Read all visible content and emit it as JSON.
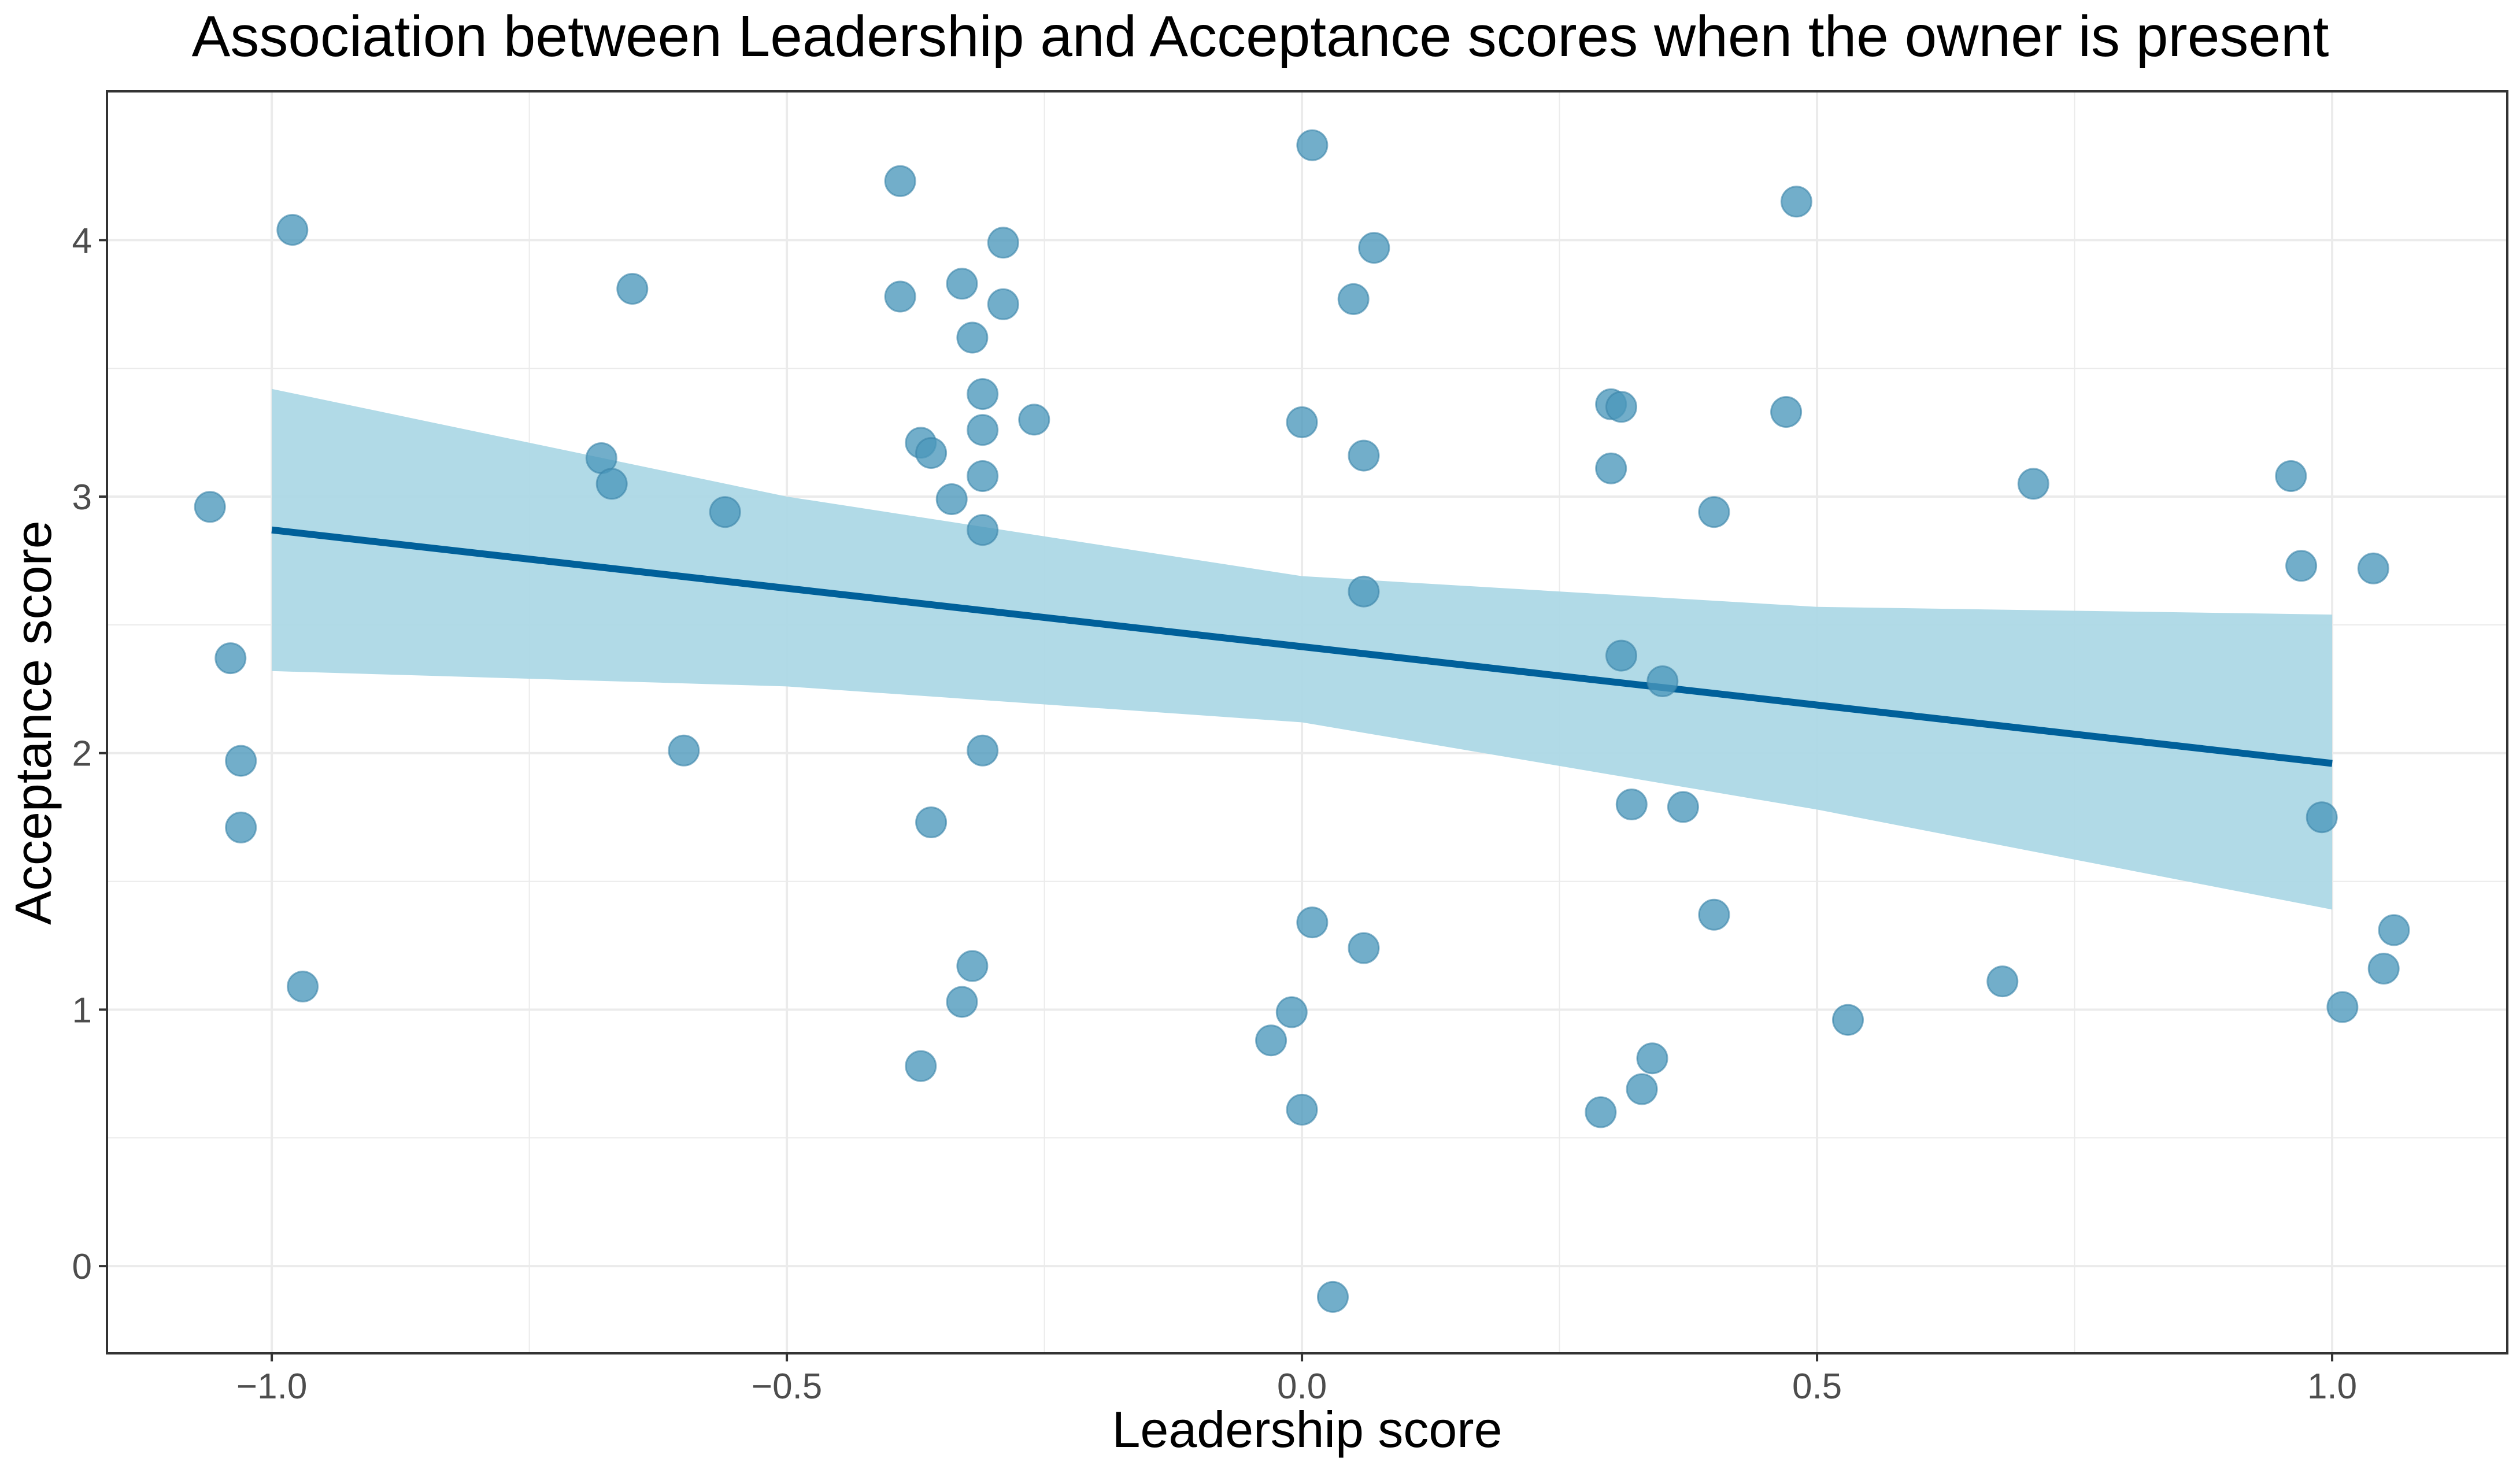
{
  "chart_data": {
    "type": "scatter",
    "title": "Association between Leadership and Acceptance scores when the owner is present",
    "xlabel": "Leadership score",
    "ylabel": "Acceptance score",
    "xlim": [
      -1.16,
      1.17
    ],
    "ylim": [
      -0.34,
      4.58
    ],
    "x_ticks": [
      -1.0,
      -0.5,
      0.0,
      0.5,
      1.0
    ],
    "x_tick_labels": [
      "−1.0",
      "−0.5",
      "0.0",
      "0.5",
      "1.0"
    ],
    "y_ticks": [
      0,
      1,
      2,
      3,
      4
    ],
    "y_tick_labels": [
      "0",
      "1",
      "2",
      "3",
      "4"
    ],
    "grid": true,
    "colors": {
      "points": "#4a97bb",
      "points_stroke": "#3b83a8",
      "line": "#00609a",
      "band": "#add8e6",
      "grid": "#ebebeb",
      "panel_border": "#333333",
      "text": "#000000",
      "tick_text": "#4d4d4d"
    },
    "series": [
      {
        "name": "observations",
        "type": "scatter",
        "points": [
          {
            "x": -0.98,
            "y": 4.04
          },
          {
            "x": -0.65,
            "y": 3.81
          },
          {
            "x": -1.06,
            "y": 2.96
          },
          {
            "x": -1.04,
            "y": 2.37
          },
          {
            "x": -1.03,
            "y": 1.97
          },
          {
            "x": -1.03,
            "y": 1.71
          },
          {
            "x": -0.97,
            "y": 1.09
          },
          {
            "x": -0.68,
            "y": 3.15
          },
          {
            "x": -0.67,
            "y": 3.05
          },
          {
            "x": -0.56,
            "y": 2.94
          },
          {
            "x": -0.6,
            "y": 2.01
          },
          {
            "x": -0.39,
            "y": 4.23
          },
          {
            "x": -0.39,
            "y": 3.78
          },
          {
            "x": -0.33,
            "y": 3.83
          },
          {
            "x": -0.29,
            "y": 3.99
          },
          {
            "x": -0.29,
            "y": 3.75
          },
          {
            "x": -0.32,
            "y": 3.62
          },
          {
            "x": -0.31,
            "y": 3.4
          },
          {
            "x": -0.31,
            "y": 3.26
          },
          {
            "x": -0.26,
            "y": 3.3
          },
          {
            "x": -0.37,
            "y": 3.21
          },
          {
            "x": -0.36,
            "y": 3.17
          },
          {
            "x": -0.31,
            "y": 3.08
          },
          {
            "x": -0.34,
            "y": 2.99
          },
          {
            "x": -0.31,
            "y": 2.87
          },
          {
            "x": -0.31,
            "y": 2.01
          },
          {
            "x": -0.36,
            "y": 1.73
          },
          {
            "x": -0.32,
            "y": 1.17
          },
          {
            "x": -0.33,
            "y": 1.03
          },
          {
            "x": -0.37,
            "y": 0.78
          },
          {
            "x": 0.01,
            "y": 4.37
          },
          {
            "x": 0.07,
            "y": 3.97
          },
          {
            "x": 0.05,
            "y": 3.77
          },
          {
            "x": 0.0,
            "y": 3.29
          },
          {
            "x": 0.06,
            "y": 3.16
          },
          {
            "x": 0.06,
            "y": 2.63
          },
          {
            "x": 0.01,
            "y": 1.34
          },
          {
            "x": 0.06,
            "y": 1.24
          },
          {
            "x": -0.01,
            "y": 0.99
          },
          {
            "x": -0.03,
            "y": 0.88
          },
          {
            "x": 0.0,
            "y": 0.61
          },
          {
            "x": 0.03,
            "y": -0.12
          },
          {
            "x": 0.48,
            "y": 4.15
          },
          {
            "x": 0.3,
            "y": 3.36
          },
          {
            "x": 0.31,
            "y": 3.35
          },
          {
            "x": 0.47,
            "y": 3.33
          },
          {
            "x": 0.3,
            "y": 3.11
          },
          {
            "x": 0.4,
            "y": 2.94
          },
          {
            "x": 0.31,
            "y": 2.38
          },
          {
            "x": 0.35,
            "y": 2.28
          },
          {
            "x": 0.32,
            "y": 1.8
          },
          {
            "x": 0.37,
            "y": 1.79
          },
          {
            "x": 0.4,
            "y": 1.37
          },
          {
            "x": 0.53,
            "y": 0.96
          },
          {
            "x": 0.34,
            "y": 0.81
          },
          {
            "x": 0.33,
            "y": 0.69
          },
          {
            "x": 0.29,
            "y": 0.6
          },
          {
            "x": 0.71,
            "y": 3.05
          },
          {
            "x": 0.68,
            "y": 1.11
          },
          {
            "x": 0.96,
            "y": 3.08
          },
          {
            "x": 0.97,
            "y": 2.73
          },
          {
            "x": 1.04,
            "y": 2.72
          },
          {
            "x": 0.99,
            "y": 1.75
          },
          {
            "x": 1.06,
            "y": 1.31
          },
          {
            "x": 1.05,
            "y": 1.16
          },
          {
            "x": 1.01,
            "y": 1.01
          }
        ]
      },
      {
        "name": "linear fit",
        "type": "line",
        "x": [
          -1.0,
          1.0
        ],
        "y": [
          2.87,
          1.96
        ]
      },
      {
        "name": "95% confidence band",
        "type": "area",
        "x": [
          -1.0,
          -0.5,
          0.0,
          0.5,
          1.0
        ],
        "upper": [
          3.42,
          3.0,
          2.69,
          2.57,
          2.54
        ],
        "lower": [
          2.32,
          2.26,
          2.12,
          1.78,
          1.39
        ]
      }
    ]
  }
}
